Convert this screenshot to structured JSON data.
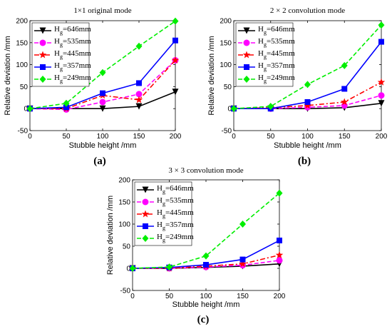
{
  "chart_data": [
    {
      "type": "line",
      "title": "1×1 original mode",
      "panel_label": "(a)",
      "xlabel": "Stubble height /mm",
      "ylabel": "Relative deviation /mm",
      "x": [
        0,
        50,
        100,
        150,
        200
      ],
      "xlim": [
        0,
        200
      ],
      "ylim": [
        -50,
        200
      ],
      "xticks": [
        0,
        50,
        100,
        150,
        200
      ],
      "yticks": [
        -50,
        0,
        50,
        100,
        150,
        200
      ],
      "legend_position": "upper-left",
      "series": [
        {
          "name": "Hg=646mm",
          "values": [
            0,
            0,
            0,
            5,
            38
          ]
        },
        {
          "name": "Hg=535mm",
          "values": [
            0,
            -2,
            15,
            33,
            110
          ]
        },
        {
          "name": "Hg=445mm",
          "values": [
            0,
            0,
            30,
            20,
            110
          ]
        },
        {
          "name": "Hg=357mm",
          "values": [
            0,
            3,
            35,
            58,
            155
          ]
        },
        {
          "name": "Hg=249mm",
          "values": [
            0,
            12,
            82,
            142,
            199
          ]
        }
      ]
    },
    {
      "type": "line",
      "title": "2 × 2 convolution mode",
      "panel_label": "(b)",
      "xlabel": "Stubble height /mm",
      "ylabel": "Relative deviation /mm",
      "x": [
        0,
        50,
        100,
        150,
        200
      ],
      "xlim": [
        0,
        200
      ],
      "ylim": [
        -50,
        200
      ],
      "xticks": [
        0,
        50,
        100,
        150,
        200
      ],
      "yticks": [
        -50,
        0,
        50,
        100,
        150,
        200
      ],
      "legend_position": "upper-left",
      "series": [
        {
          "name": "Hg=646mm",
          "values": [
            0,
            0,
            0,
            2,
            12
          ]
        },
        {
          "name": "Hg=535mm",
          "values": [
            0,
            0,
            3,
            7,
            30
          ]
        },
        {
          "name": "Hg=445mm",
          "values": [
            0,
            2,
            7,
            15,
            60
          ]
        },
        {
          "name": "Hg=357mm",
          "values": [
            0,
            0,
            15,
            45,
            152
          ]
        },
        {
          "name": "Hg=249mm",
          "values": [
            0,
            5,
            55,
            98,
            190
          ]
        }
      ]
    },
    {
      "type": "line",
      "title": "3 × 3 convolution mode",
      "panel_label": "(c)",
      "xlabel": "Stubble height /mm",
      "ylabel": "Relative deviation /mm",
      "x": [
        0,
        50,
        100,
        150,
        200
      ],
      "xlim": [
        0,
        200
      ],
      "ylim": [
        -50,
        200
      ],
      "xticks": [
        0,
        50,
        100,
        150,
        200
      ],
      "yticks": [
        -50,
        0,
        50,
        100,
        150,
        200
      ],
      "legend_position": "upper-left",
      "series": [
        {
          "name": "Hg=646mm",
          "values": [
            0,
            0,
            2,
            5,
            10
          ]
        },
        {
          "name": "Hg=535mm",
          "values": [
            0,
            0,
            3,
            7,
            18
          ]
        },
        {
          "name": "Hg=445mm",
          "values": [
            0,
            0,
            5,
            10,
            30
          ]
        },
        {
          "name": "Hg=357mm",
          "values": [
            0,
            2,
            8,
            20,
            63
          ]
        },
        {
          "name": "Hg=249mm",
          "values": [
            0,
            3,
            28,
            100,
            170
          ]
        }
      ]
    }
  ],
  "legend_entries": [
    {
      "base": "H",
      "sub": "g",
      "rest": "=646mm"
    },
    {
      "base": "H",
      "sub": "g",
      "rest": "=535mm"
    },
    {
      "base": "H",
      "sub": "g",
      "rest": "=445mm"
    },
    {
      "base": "H",
      "sub": "g",
      "rest": "=357mm"
    },
    {
      "base": "H",
      "sub": "g",
      "rest": "=249mm"
    }
  ],
  "series_styles": [
    {
      "color": "#000000",
      "marker": "triangle-down",
      "dash": "solid"
    },
    {
      "color": "#ff00ff",
      "marker": "circle",
      "dash": "dashed"
    },
    {
      "color": "#ff0000",
      "marker": "star",
      "dash": "dashdot"
    },
    {
      "color": "#0000ff",
      "marker": "square",
      "dash": "solid"
    },
    {
      "color": "#00ee00",
      "marker": "diamond",
      "dash": "dashed"
    }
  ]
}
